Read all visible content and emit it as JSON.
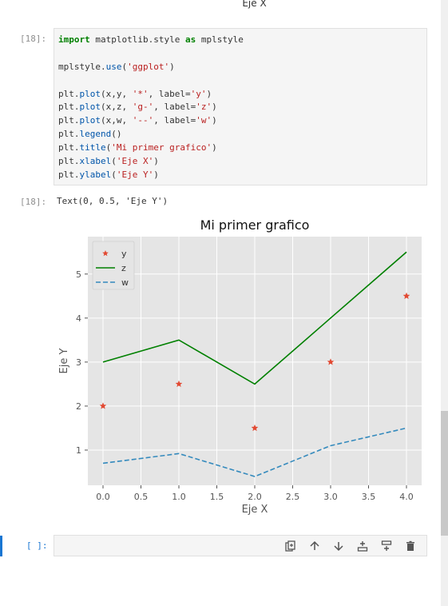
{
  "previous_output": {
    "xlabel": "Eje X"
  },
  "code_cell": {
    "prompt": "[18]:",
    "lines": [
      [
        {
          "t": "import",
          "c": "kw"
        },
        {
          "t": " matplotlib.style ",
          "c": "ns"
        },
        {
          "t": "as",
          "c": "kw"
        },
        {
          "t": " mplstyle",
          "c": "ns"
        }
      ],
      [],
      [
        {
          "t": "mplstyle.",
          "c": "ns"
        },
        {
          "t": "use",
          "c": "fn"
        },
        {
          "t": "(",
          "c": "ns"
        },
        {
          "t": "'ggplot'",
          "c": "str"
        },
        {
          "t": ")",
          "c": "ns"
        }
      ],
      [],
      [
        {
          "t": "plt.",
          "c": "ns"
        },
        {
          "t": "plot",
          "c": "fn"
        },
        {
          "t": "(x,y, ",
          "c": "ns"
        },
        {
          "t": "'*'",
          "c": "str"
        },
        {
          "t": ", label=",
          "c": "ns"
        },
        {
          "t": "'y'",
          "c": "str"
        },
        {
          "t": ")",
          "c": "ns"
        }
      ],
      [
        {
          "t": "plt.",
          "c": "ns"
        },
        {
          "t": "plot",
          "c": "fn"
        },
        {
          "t": "(x,z, ",
          "c": "ns"
        },
        {
          "t": "'g-'",
          "c": "str"
        },
        {
          "t": ", label=",
          "c": "ns"
        },
        {
          "t": "'z'",
          "c": "str"
        },
        {
          "t": ")",
          "c": "ns"
        }
      ],
      [
        {
          "t": "plt.",
          "c": "ns"
        },
        {
          "t": "plot",
          "c": "fn"
        },
        {
          "t": "(x,w, ",
          "c": "ns"
        },
        {
          "t": "'--'",
          "c": "str"
        },
        {
          "t": ", label=",
          "c": "ns"
        },
        {
          "t": "'w'",
          "c": "str"
        },
        {
          "t": ")",
          "c": "ns"
        }
      ],
      [
        {
          "t": "plt.",
          "c": "ns"
        },
        {
          "t": "legend",
          "c": "fn"
        },
        {
          "t": "()",
          "c": "ns"
        }
      ],
      [
        {
          "t": "plt.",
          "c": "ns"
        },
        {
          "t": "title",
          "c": "fn"
        },
        {
          "t": "(",
          "c": "ns"
        },
        {
          "t": "'Mi primer grafico'",
          "c": "str"
        },
        {
          "t": ")",
          "c": "ns"
        }
      ],
      [
        {
          "t": "plt.",
          "c": "ns"
        },
        {
          "t": "xlabel",
          "c": "fn"
        },
        {
          "t": "(",
          "c": "ns"
        },
        {
          "t": "'Eje X'",
          "c": "str"
        },
        {
          "t": ")",
          "c": "ns"
        }
      ],
      [
        {
          "t": "plt.",
          "c": "ns"
        },
        {
          "t": "ylabel",
          "c": "fn"
        },
        {
          "t": "(",
          "c": "ns"
        },
        {
          "t": "'Eje Y'",
          "c": "str"
        },
        {
          "t": ")",
          "c": "ns"
        }
      ]
    ]
  },
  "output_cell": {
    "prompt": "[18]:",
    "text": "Text(0, 0.5, 'Eje Y')"
  },
  "chart_data": {
    "type": "line",
    "title": "Mi primer grafico",
    "xlabel": "Eje X",
    "ylabel": "Eje Y",
    "xlim": [
      -0.2,
      4.2
    ],
    "ylim": [
      0.2,
      5.85
    ],
    "xticks": [
      0.0,
      0.5,
      1.0,
      1.5,
      2.0,
      2.5,
      3.0,
      3.5,
      4.0
    ],
    "xtick_labels": [
      "0.0",
      "0.5",
      "1.0",
      "1.5",
      "2.0",
      "2.5",
      "3.0",
      "3.5",
      "4.0"
    ],
    "yticks": [
      1,
      2,
      3,
      4,
      5
    ],
    "ytick_labels": [
      "1",
      "2",
      "3",
      "4",
      "5"
    ],
    "grid": true,
    "legend_position": "top-left",
    "x": [
      0,
      1,
      2,
      3,
      4
    ],
    "series": [
      {
        "name": "y",
        "style": "star",
        "color": "#e24a33",
        "values": [
          2.0,
          2.5,
          1.5,
          3.0,
          4.5
        ]
      },
      {
        "name": "z",
        "style": "solid",
        "color": "#008000",
        "values": [
          3.0,
          3.5,
          2.5,
          4.0,
          5.5
        ]
      },
      {
        "name": "w",
        "style": "dashed",
        "color": "#348abd",
        "values": [
          0.7,
          0.92,
          0.4,
          1.1,
          1.5
        ]
      }
    ]
  },
  "empty_cell": {
    "prompt": "[ ]:"
  },
  "toolbar": {
    "icons": [
      "duplicate-icon",
      "move-up-icon",
      "move-down-icon",
      "insert-above-icon",
      "insert-below-icon",
      "delete-icon"
    ]
  }
}
